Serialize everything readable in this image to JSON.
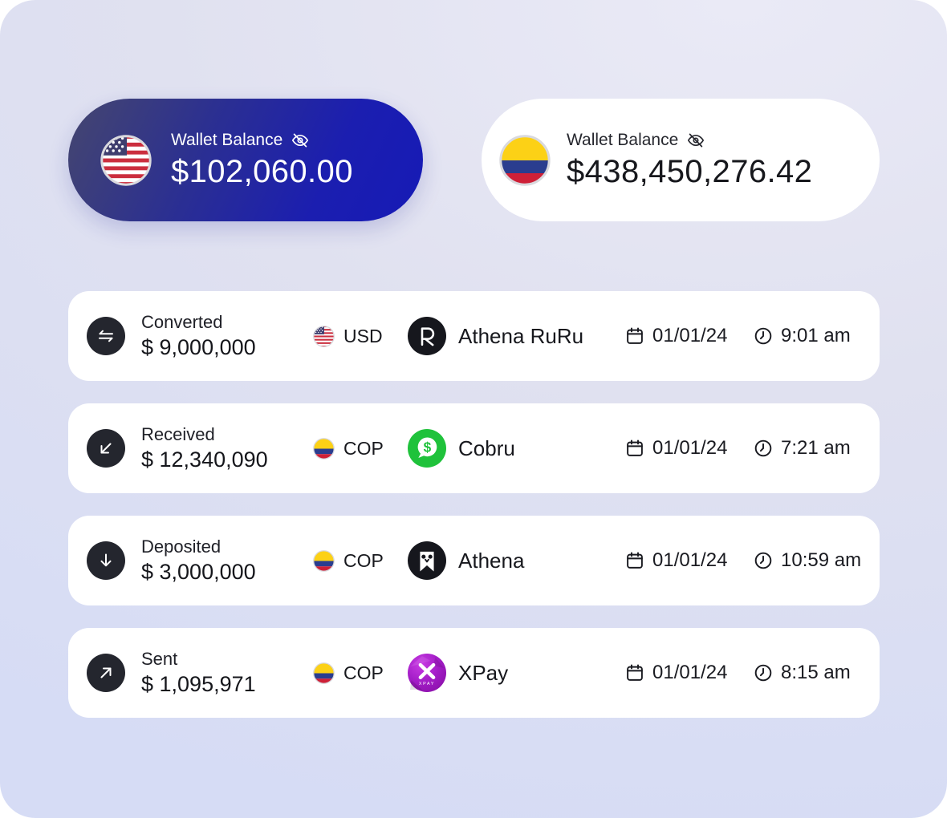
{
  "colors": {
    "page_bg": "#dfe1f1",
    "primary_pill_gradient_start": "#45466f",
    "primary_pill_gradient_end": "#161ab6",
    "card_bg": "#ffffff",
    "dark_icon_circle": "#24262e",
    "text_dark": "#17181d",
    "cobru_green": "#1FC23B",
    "xpay_purple": "#A21CC6",
    "colombia_yellow": "#FCD116",
    "colombia_blue": "#2A3D8F",
    "colombia_red": "#CE2037",
    "us_red": "#CB2E3E",
    "us_blue": "#3F3E6E"
  },
  "balances": [
    {
      "label": "Wallet Balance",
      "amount": "$102,060.00",
      "flag_icon": "us-flag",
      "hide_icon": "eye-off",
      "theme": "primary"
    },
    {
      "label": "Wallet Balance",
      "amount": "$438,450,276.42",
      "flag_icon": "co-flag",
      "hide_icon": "eye-off",
      "theme": "light"
    }
  ],
  "transactions": [
    {
      "type": "Converted",
      "type_icon": "convert-icon",
      "amount": "$ 9,000,000",
      "flag_icon": "us-flag",
      "currency": "USD",
      "partner": "Athena RuRu",
      "partner_logo": "athena-ruru-logo",
      "date": "01/01/24",
      "time": "9:01 am"
    },
    {
      "type": "Received",
      "type_icon": "arrow-down-left-icon",
      "amount": "$ 12,340,090",
      "flag_icon": "co-flag",
      "currency": "COP",
      "partner": "Cobru",
      "partner_logo": "cobru-logo",
      "date": "01/01/24",
      "time": "7:21 am"
    },
    {
      "type": "Deposited",
      "type_icon": "arrow-down-icon",
      "amount": "$ 3,000,000",
      "flag_icon": "co-flag",
      "currency": "COP",
      "partner": "Athena",
      "partner_logo": "athena-logo",
      "date": "01/01/24",
      "time": "10:59 am"
    },
    {
      "type": "Sent",
      "type_icon": "arrow-up-right-icon",
      "amount": "$ 1,095,971",
      "flag_icon": "co-flag",
      "currency": "COP",
      "partner": "XPay",
      "partner_logo": "xpay-logo",
      "date": "01/01/24",
      "time": "8:15 am"
    }
  ]
}
